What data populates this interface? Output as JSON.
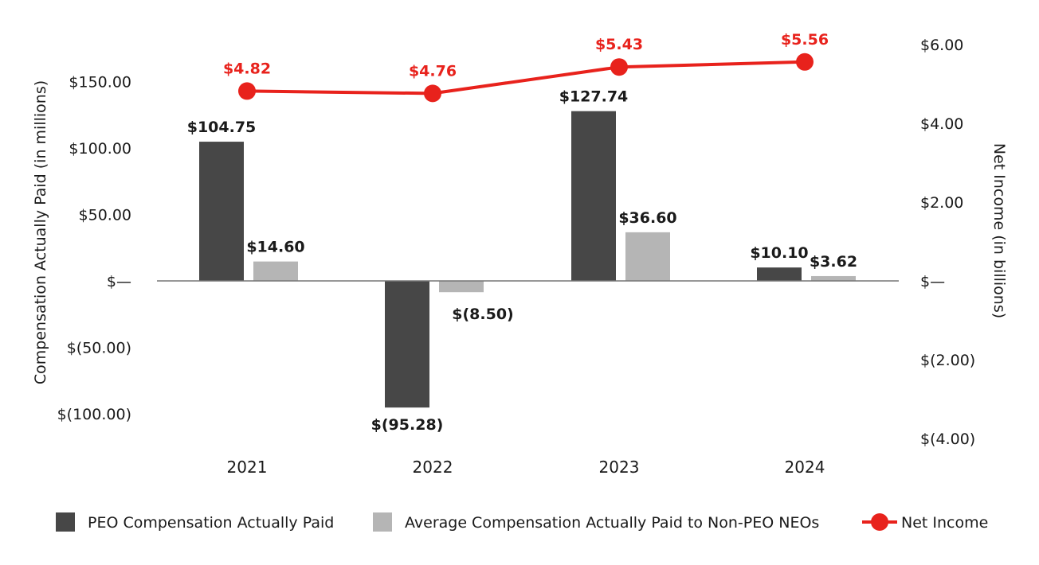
{
  "chart_data": {
    "type": "bar",
    "title": "",
    "categories": [
      "2021",
      "2022",
      "2023",
      "2024"
    ],
    "y_left": {
      "label": "Compensation Actually Paid (in millions)",
      "range": [
        -100,
        150
      ],
      "ticks": [
        150,
        100,
        50,
        0,
        -50,
        -100
      ],
      "tick_labels": [
        "$150.00",
        "$100.00",
        "$50.00",
        "$—",
        "$(50.00)",
        "$(100.00)"
      ]
    },
    "y_right": {
      "label": "Net Income (in billions)",
      "range": [
        -4,
        6
      ],
      "ticks": [
        6,
        4,
        2,
        0,
        -2,
        -4
      ],
      "tick_labels": [
        "$6.00",
        "$4.00",
        "$2.00",
        "$—",
        "$(2.00)",
        "$(4.00)"
      ]
    },
    "series": [
      {
        "name": "PEO Compensation Actually Paid",
        "type": "bar",
        "axis": "left",
        "color": "#474747",
        "values": [
          104.75,
          -95.28,
          127.74,
          10.1
        ],
        "labels": [
          "$104.75",
          "$(95.28)",
          "$127.74",
          "$10.10"
        ]
      },
      {
        "name": "Average Compensation Actually Paid to Non-PEO NEOs",
        "type": "bar",
        "axis": "left",
        "color": "#b5b5b5",
        "values": [
          14.6,
          -8.5,
          36.6,
          3.62
        ],
        "labels": [
          "$14.60",
          "$(8.50)",
          "$36.60",
          "$3.62"
        ]
      },
      {
        "name": "Net Income",
        "type": "line",
        "axis": "right",
        "color": "#e8221c",
        "values": [
          4.82,
          4.76,
          5.43,
          5.56
        ],
        "labels": [
          "$4.82",
          "$4.76",
          "$5.43",
          "$5.56"
        ]
      }
    ],
    "legend_position": "bottom",
    "grid": false
  }
}
